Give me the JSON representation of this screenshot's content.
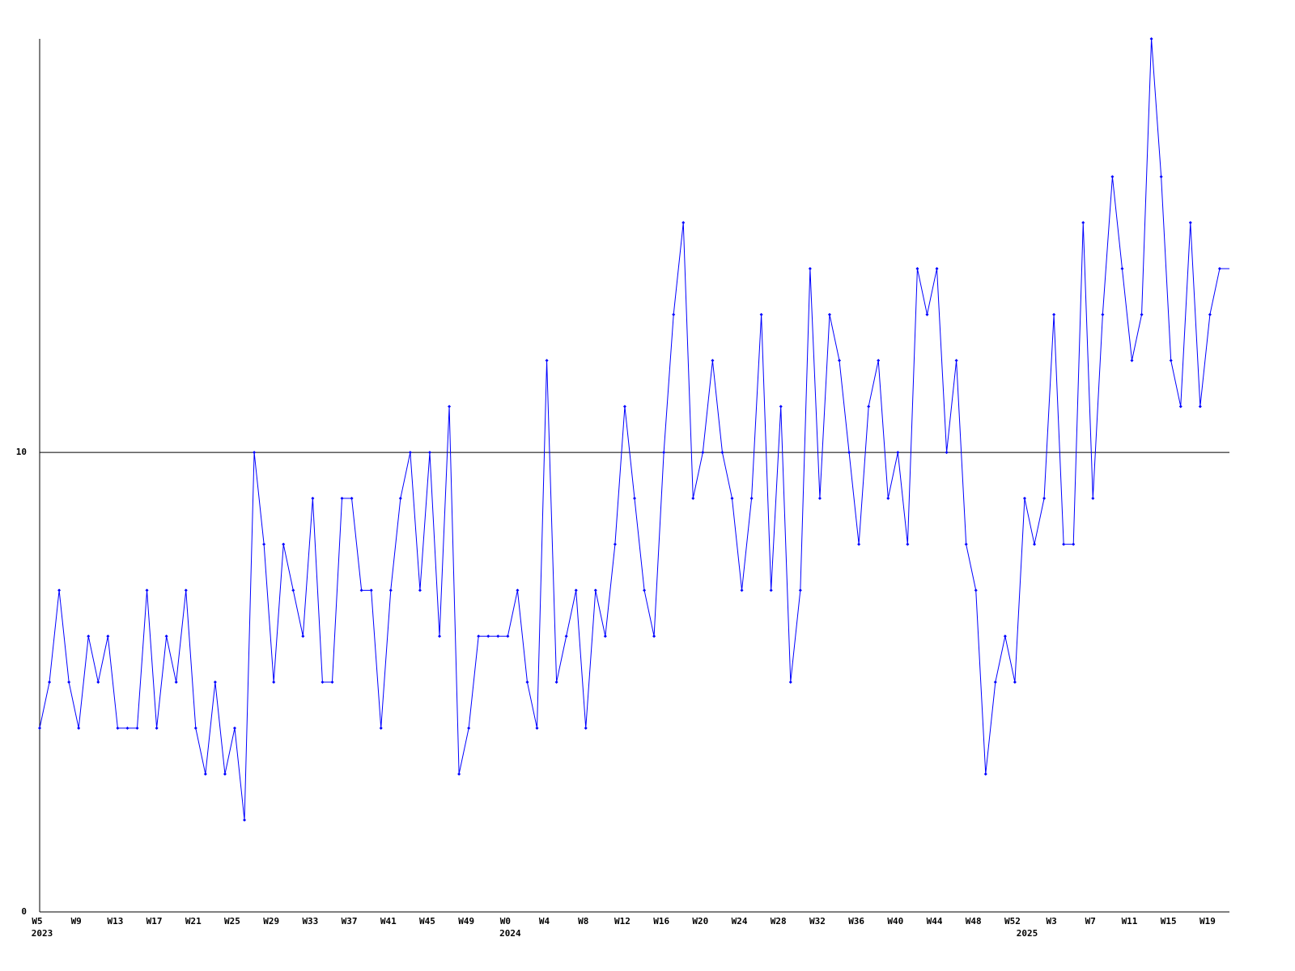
{
  "chart_data": {
    "type": "line",
    "categories": [
      "W5",
      null,
      null,
      null,
      "W9",
      null,
      null,
      null,
      "W13",
      null,
      null,
      null,
      "W17",
      null,
      null,
      null,
      "W21",
      null,
      null,
      null,
      "W25",
      null,
      null,
      null,
      "W29",
      null,
      null,
      null,
      "W33",
      null,
      null,
      null,
      "W37",
      null,
      null,
      null,
      "W41",
      null,
      null,
      null,
      "W45",
      null,
      null,
      null,
      "W49",
      null,
      null,
      null,
      "W0",
      null,
      null,
      null,
      "W4",
      null,
      null,
      null,
      "W8",
      null,
      null,
      null,
      "W12",
      null,
      null,
      null,
      "W16",
      null,
      null,
      null,
      "W20",
      null,
      null,
      null,
      "W24",
      null,
      null,
      null,
      "W28",
      null,
      null,
      null,
      "W32",
      null,
      null,
      null,
      "W36",
      null,
      null,
      null,
      "W40",
      null,
      null,
      null,
      "W44",
      null,
      null,
      null,
      "W48",
      null,
      null,
      null,
      "W52",
      null,
      null,
      null,
      "W3",
      null,
      null,
      null,
      "W7",
      null,
      null,
      null,
      "W11",
      null,
      null,
      null,
      "W15",
      null,
      null,
      null,
      "W19",
      null,
      null
    ],
    "years": [
      {
        "label": "2023",
        "at": 0
      },
      {
        "label": "2024",
        "at": 48
      },
      {
        "label": "2025",
        "at": 101
      }
    ],
    "series": [
      {
        "color": "#0000ff",
        "values": [
          4,
          5,
          7,
          5,
          4,
          6,
          5,
          6,
          4,
          4,
          4,
          7,
          4,
          6,
          5,
          7,
          4,
          3,
          5,
          3,
          4,
          2,
          10,
          8,
          5,
          8,
          7,
          6,
          9,
          5,
          5,
          9,
          9,
          7,
          7,
          4,
          7,
          9,
          10,
          7,
          10,
          6,
          11,
          3,
          4,
          6,
          6,
          6,
          6,
          7,
          5,
          4,
          12,
          5,
          6,
          7,
          4,
          7,
          6,
          8,
          11,
          9,
          7,
          6,
          10,
          13,
          15,
          9,
          10,
          12,
          10,
          9,
          7,
          9,
          13,
          7,
          11,
          5,
          7,
          14,
          9,
          13,
          12,
          10,
          8,
          11,
          12,
          9,
          10,
          8,
          14,
          13,
          14,
          10,
          12,
          8,
          7,
          3,
          5,
          6,
          5,
          9,
          8,
          9,
          13,
          8,
          8,
          15,
          9,
          13,
          16,
          14,
          12,
          13,
          19,
          16,
          12,
          11,
          15,
          11,
          13,
          14,
          14
        ]
      }
    ],
    "ylim": [
      0,
      19
    ],
    "yticks": [
      0,
      10
    ],
    "grid": true
  }
}
